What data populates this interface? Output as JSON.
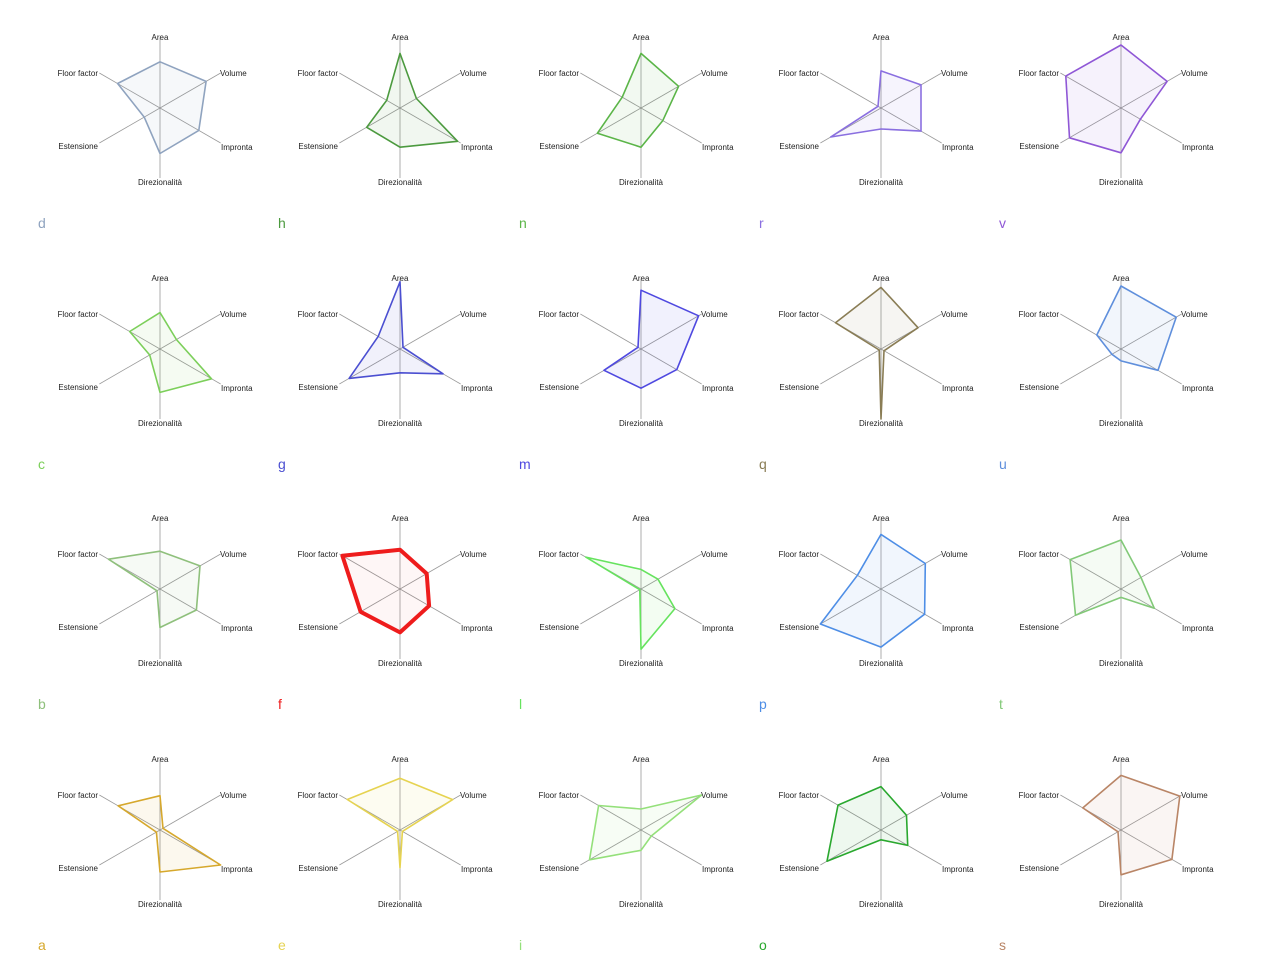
{
  "axes": [
    "Area",
    "Volume",
    "Impronta",
    "Direzionalità",
    "Estensione",
    "Floor factor"
  ],
  "chart_data": [
    {
      "type": "radar",
      "label": "d",
      "color": "#8fa3bf",
      "values": [
        0.66,
        0.76,
        0.64,
        0.65,
        0.26,
        0.7
      ],
      "ylim": [
        0,
        1
      ],
      "grid": false
    },
    {
      "type": "radar",
      "label": "h",
      "color": "#4c9a3f",
      "values": [
        0.78,
        0.27,
        0.95,
        0.56,
        0.55,
        0.22
      ],
      "ylim": [
        0,
        1
      ],
      "grid": false
    },
    {
      "type": "radar",
      "label": "n",
      "color": "#5bb548",
      "values": [
        0.78,
        0.62,
        0.36,
        0.56,
        0.72,
        0.31
      ],
      "ylim": [
        0,
        1
      ],
      "grid": false
    },
    {
      "type": "radar",
      "label": "r",
      "color": "#8a6fe0",
      "values": [
        0.53,
        0.66,
        0.66,
        0.3,
        0.83,
        0.05
      ],
      "ylim": [
        0,
        1
      ],
      "grid": false
    },
    {
      "type": "radar",
      "label": "v",
      "color": "#8f57d6",
      "values": [
        0.9,
        0.76,
        0.32,
        0.64,
        0.85,
        0.91
      ],
      "ylim": [
        0,
        1
      ],
      "grid": false
    },
    {
      "type": "radar",
      "label": "c",
      "color": "#7ccf5a",
      "values": [
        0.52,
        0.27,
        0.85,
        0.62,
        0.17,
        0.5
      ],
      "ylim": [
        0,
        1
      ],
      "grid": false
    },
    {
      "type": "radar",
      "label": "g",
      "color": "#4b4fd1",
      "values": [
        0.96,
        0.05,
        0.71,
        0.34,
        0.84,
        0.36
      ],
      "ylim": [
        0,
        1
      ],
      "grid": false
    },
    {
      "type": "radar",
      "label": "m",
      "color": "#4f49e0",
      "values": [
        0.84,
        0.95,
        0.59,
        0.56,
        0.61,
        0.05
      ],
      "ylim": [
        0,
        1
      ],
      "grid": false
    },
    {
      "type": "radar",
      "label": "q",
      "color": "#8a7d55",
      "values": [
        0.88,
        0.61,
        0.05,
        1.0,
        0.03,
        0.75
      ],
      "ylim": [
        0,
        1
      ],
      "grid": false
    },
    {
      "type": "radar",
      "label": "u",
      "color": "#5f8fdc",
      "values": [
        0.9,
        0.91,
        0.61,
        0.17,
        0.15,
        0.4
      ],
      "ylim": [
        0,
        1
      ],
      "grid": false
    },
    {
      "type": "radar",
      "label": "b",
      "color": "#8fc07c",
      "values": [
        0.54,
        0.66,
        0.6,
        0.55,
        0.05,
        0.85
      ],
      "ylim": [
        0,
        1
      ],
      "grid": false
    },
    {
      "type": "radar",
      "label": "f",
      "color": "#ee1c1c",
      "values": [
        0.56,
        0.44,
        0.48,
        0.62,
        0.65,
        0.95
      ],
      "ylim": [
        0,
        1
      ],
      "grid": false
    },
    {
      "type": "radar",
      "label": "l",
      "color": "#66e35e",
      "values": [
        0.28,
        0.28,
        0.56,
        0.86,
        0.02,
        0.91
      ],
      "ylim": [
        0,
        1
      ],
      "grid": false
    },
    {
      "type": "radar",
      "label": "p",
      "color": "#4e8ee6",
      "values": [
        0.78,
        0.73,
        0.72,
        0.83,
        1.0,
        0.39
      ],
      "ylim": [
        0,
        1
      ],
      "grid": false
    },
    {
      "type": "radar",
      "label": "t",
      "color": "#82c978",
      "values": [
        0.7,
        0.33,
        0.55,
        0.12,
        0.75,
        0.84
      ],
      "ylim": [
        0,
        1
      ],
      "grid": false
    },
    {
      "type": "radar",
      "label": "a",
      "color": "#d6a82c",
      "values": [
        0.49,
        0.05,
        1.0,
        0.6,
        0.06,
        0.69
      ],
      "ylim": [
        0,
        1
      ],
      "grid": false
    },
    {
      "type": "radar",
      "label": "e",
      "color": "#e6d351",
      "values": [
        0.74,
        0.87,
        0.04,
        0.54,
        0.04,
        0.87
      ],
      "ylim": [
        0,
        1
      ],
      "grid": false
    },
    {
      "type": "radar",
      "label": "i",
      "color": "#94e07a",
      "values": [
        0.3,
        1.0,
        0.17,
        0.29,
        0.85,
        0.7
      ],
      "ylim": [
        0,
        1
      ],
      "grid": false
    },
    {
      "type": "radar",
      "label": "o",
      "color": "#2aa82f",
      "values": [
        0.62,
        0.42,
        0.44,
        0.14,
        0.89,
        0.71
      ],
      "ylim": [
        0,
        1
      ],
      "grid": false
    },
    {
      "type": "radar",
      "label": "s",
      "color": "#b98566",
      "values": [
        0.78,
        0.97,
        0.84,
        0.64,
        0.05,
        0.63
      ],
      "ylim": [
        0,
        1
      ],
      "grid": false
    }
  ]
}
